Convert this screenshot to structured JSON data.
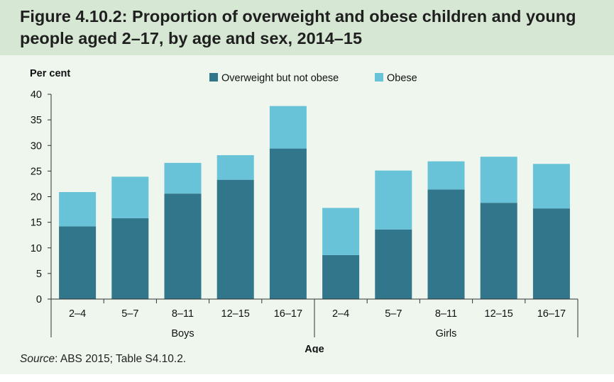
{
  "figure": {
    "title": "Figure 4.10.2: Proportion of overweight and obese children and young people aged 2–17, by age and sex, 2014–15",
    "source_label": "Source",
    "source_text": ": ABS 2015; Table S4.10.2."
  },
  "colors": {
    "overweight": "#31768a",
    "obese": "#68c3d9",
    "axis": "#333333",
    "band": "#d6e8d3",
    "background": "#eef6ee"
  },
  "chart_data": {
    "type": "bar",
    "stacked": true,
    "ylabel": "Per cent",
    "xlabel": "Age",
    "ylim": [
      0,
      40
    ],
    "yticks": [
      0,
      5,
      10,
      15,
      20,
      25,
      30,
      35,
      40
    ],
    "grid": false,
    "legend_position": "top-center",
    "groups": [
      "Boys",
      "Girls"
    ],
    "categories": [
      "2–4",
      "5–7",
      "8–11",
      "12–15",
      "16–17",
      "2–4",
      "5–7",
      "8–11",
      "12–15",
      "16–17"
    ],
    "category_group": [
      "Boys",
      "Boys",
      "Boys",
      "Boys",
      "Boys",
      "Girls",
      "Girls",
      "Girls",
      "Girls",
      "Girls"
    ],
    "series": [
      {
        "name": "Overweight but not obese",
        "values": [
          14.2,
          15.8,
          20.6,
          23.3,
          29.4,
          8.6,
          13.6,
          21.4,
          18.8,
          17.7
        ]
      },
      {
        "name": "Obese",
        "values": [
          6.7,
          8.1,
          6.0,
          4.8,
          8.3,
          9.2,
          11.5,
          5.5,
          9.0,
          8.7
        ]
      }
    ]
  }
}
